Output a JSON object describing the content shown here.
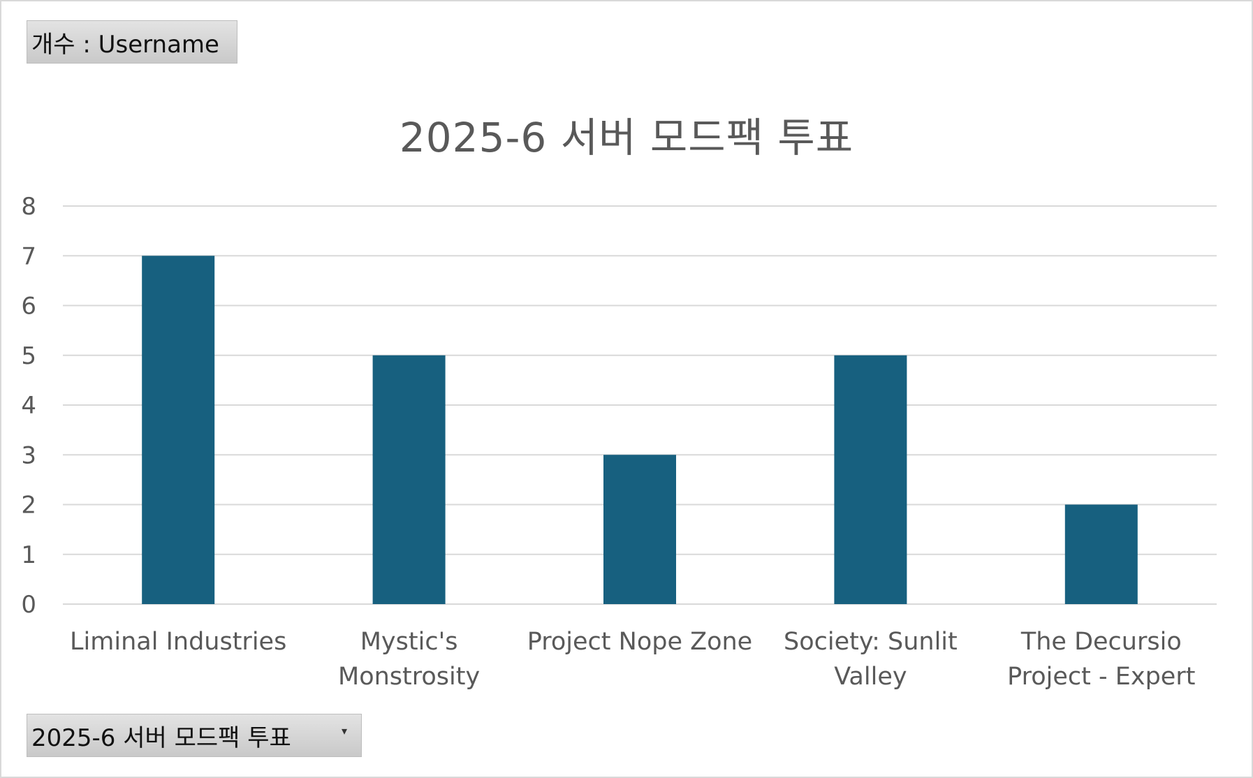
{
  "value_field": {
    "label": "개수 : Username"
  },
  "filter_field": {
    "label": "2025-6 서버 모드팩 투표",
    "dropdown_icon": "chevron-down-icon"
  },
  "colors": {
    "bar": "#17607f",
    "gridline": "#d9d9d9",
    "text": "#595959"
  },
  "chart_data": {
    "type": "bar",
    "title": "2025-6 서버 모드팩 투표",
    "xlabel": "",
    "ylabel": "",
    "categories": [
      [
        "Liminal Industries"
      ],
      [
        "Mystic's",
        "Monstrosity"
      ],
      [
        "Project Nope Zone"
      ],
      [
        "Society: Sunlit",
        "Valley"
      ],
      [
        "The Decursio",
        "Project - Expert"
      ]
    ],
    "values": [
      7,
      5,
      3,
      5,
      2
    ],
    "ylim": [
      0,
      8
    ],
    "yticks": [
      0,
      1,
      2,
      3,
      4,
      5,
      6,
      7,
      8
    ],
    "grid": true,
    "legend": "none"
  }
}
